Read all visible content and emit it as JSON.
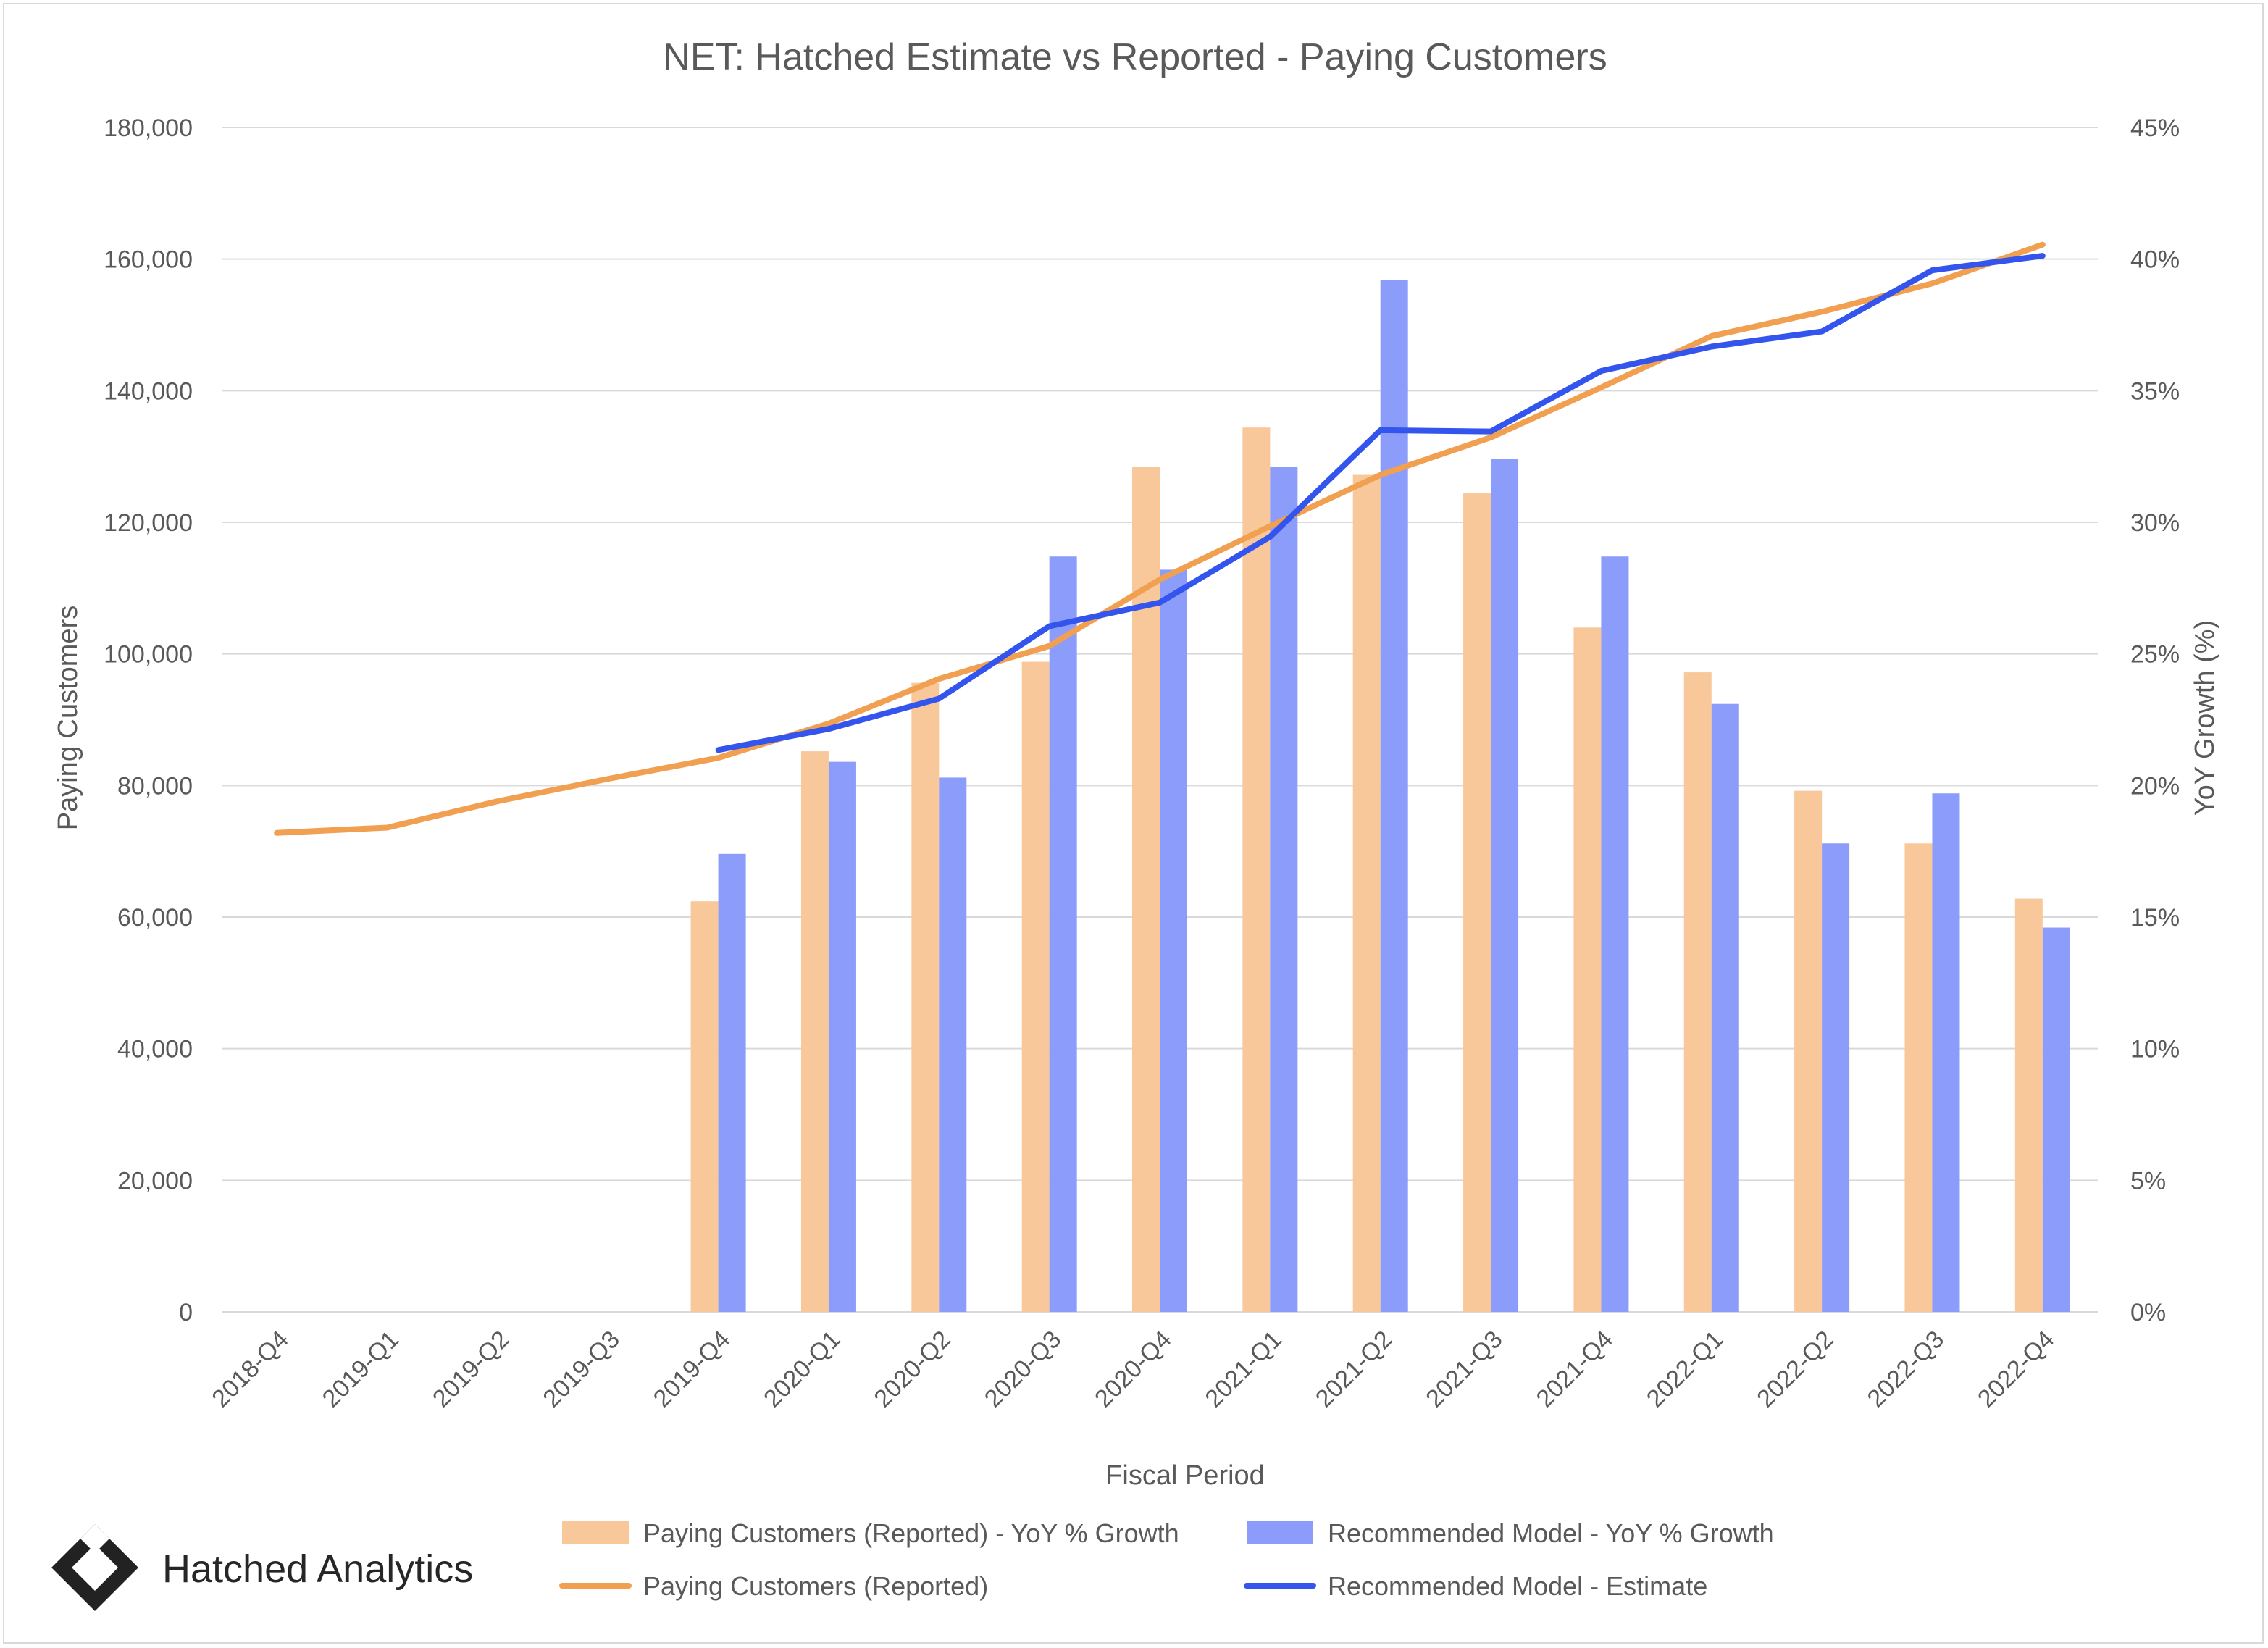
{
  "brand": {
    "logo_name": "Hatched Analytics"
  },
  "chart_data": {
    "type": "bar+line",
    "title": "NET: Hatched Estimate vs Reported - Paying Customers",
    "xlabel": "Fiscal Period",
    "ylabel_left": "Paying Customers",
    "ylabel_right": "YoY Growth (%)",
    "categories": [
      "2018-Q4",
      "2019-Q1",
      "2019-Q2",
      "2019-Q3",
      "2019-Q4",
      "2020-Q1",
      "2020-Q2",
      "2020-Q3",
      "2020-Q4",
      "2021-Q1",
      "2021-Q2",
      "2021-Q3",
      "2021-Q4",
      "2022-Q1",
      "2022-Q2",
      "2022-Q3",
      "2022-Q4"
    ],
    "ylim_left": [
      0,
      180000
    ],
    "yticks_left": [
      "0",
      "20,000",
      "40,000",
      "60,000",
      "80,000",
      "100,000",
      "120,000",
      "140,000",
      "160,000",
      "180,000"
    ],
    "ylim_right": [
      0,
      45
    ],
    "yticks_right": [
      "0%",
      "5%",
      "10%",
      "15%",
      "20%",
      "25%",
      "30%",
      "35%",
      "40%",
      "45%"
    ],
    "grid": "horizontal",
    "legend_position": "bottom",
    "colors": {
      "reported_bar": "#f8c89b",
      "model_bar": "#8b9cfa",
      "reported_line": "#f0a050",
      "model_line": "#3355ee",
      "grid": "#d9d9d9",
      "text": "#595959"
    },
    "series": [
      {
        "name": "Paying Customers (Reported) - YoY % Growth",
        "kind": "bar",
        "axis": "right",
        "values": [
          null,
          null,
          null,
          null,
          15.6,
          21.3,
          23.9,
          24.7,
          32.1,
          33.6,
          31.8,
          31.1,
          26.0,
          24.3,
          19.8,
          17.8,
          15.7
        ]
      },
      {
        "name": "Recommended Model - YoY % Growth",
        "kind": "bar",
        "axis": "right",
        "values": [
          null,
          null,
          null,
          null,
          17.4,
          20.9,
          20.3,
          28.7,
          28.2,
          32.1,
          39.2,
          32.4,
          28.7,
          23.1,
          17.8,
          19.7,
          14.6
        ]
      },
      {
        "name": "Paying Customers (Reported)",
        "kind": "line",
        "axis": "left",
        "values": [
          72800,
          73600,
          77600,
          81000,
          84200,
          89400,
          96200,
          101200,
          111300,
          119400,
          127200,
          132900,
          140500,
          148300,
          152000,
          156300,
          162200
        ]
      },
      {
        "name": "Recommended Model - Estimate",
        "kind": "line",
        "axis": "left",
        "values": [
          null,
          null,
          null,
          null,
          85400,
          88600,
          93200,
          104200,
          107800,
          117800,
          134000,
          133800,
          143000,
          146700,
          149000,
          158300,
          160500
        ]
      }
    ]
  }
}
